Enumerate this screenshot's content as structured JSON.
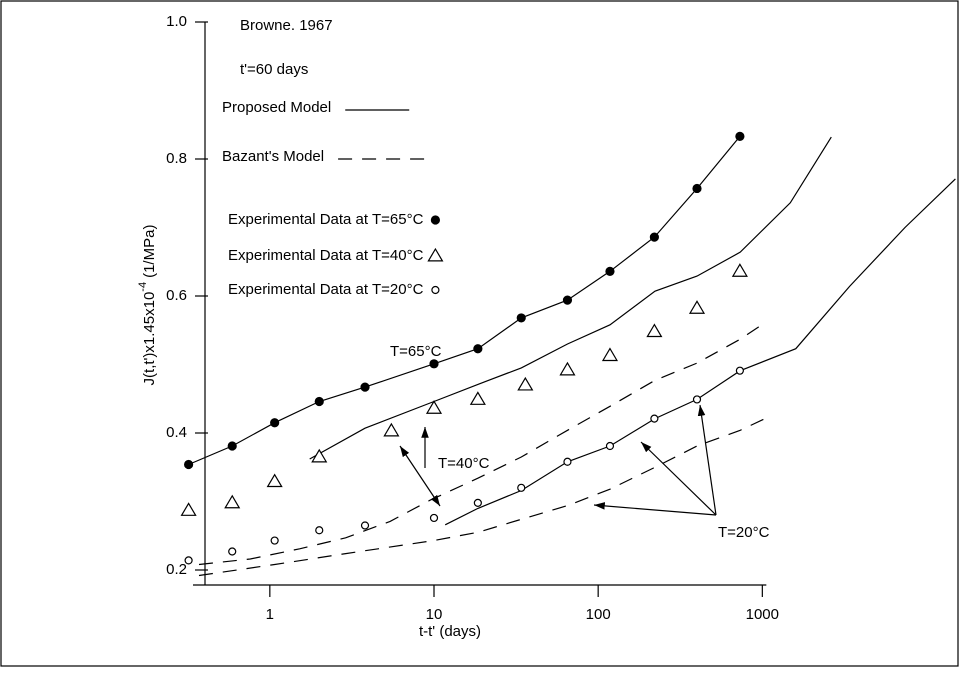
{
  "chart_data": {
    "type": "scatter",
    "source": "Browne. 1967",
    "subtitle": "t'=60 days",
    "x_label": "t-t' (days)",
    "y_label": {
      "text": "J(t,t')x1.45x10",
      "superscript": "-4",
      "unit": "(1/MPa)"
    },
    "xscale": "log",
    "xlim": [
      0.3,
      16000
    ],
    "xticks": [
      1,
      10,
      100,
      1000
    ],
    "ylim": [
      0.2,
      1.0
    ],
    "yticks": [
      0.2,
      0.4,
      0.6,
      0.8,
      {
        "value": 1.0,
        "label": "1.0"
      }
    ],
    "series": [
      {
        "name": "Experimental Data at T=65°C",
        "marker": "filled-circle",
        "color": "#000000",
        "x": [
          0.32,
          0.59,
          1.07,
          2.0,
          3.8,
          10,
          18.5,
          34,
          65,
          118,
          220,
          400,
          730
        ],
        "values": [
          0.354,
          0.381,
          0.415,
          0.446,
          0.467,
          0.501,
          0.523,
          0.568,
          0.594,
          0.636,
          0.686,
          0.757,
          0.833
        ]
      },
      {
        "name": "Experimental Data at T=40°C",
        "marker": "triangle",
        "color": "#000000",
        "x": [
          0.32,
          0.59,
          1.07,
          2.0,
          5.5,
          10,
          18.5,
          36,
          65,
          118,
          220,
          400,
          730
        ],
        "values": [
          0.287,
          0.298,
          0.329,
          0.365,
          0.403,
          0.436,
          0.449,
          0.47,
          0.492,
          0.513,
          0.548,
          0.582,
          0.636
        ]
      },
      {
        "name": "Experimental Data at T=20°C",
        "marker": "open-circle",
        "color": "#000000",
        "x": [
          0.32,
          0.59,
          1.07,
          2.0,
          3.8,
          10,
          18.5,
          34,
          65,
          118,
          220,
          400,
          730
        ],
        "values": [
          0.214,
          0.227,
          0.243,
          0.258,
          0.265,
          0.276,
          0.298,
          0.32,
          0.358,
          0.381,
          0.421,
          0.449,
          0.491
        ]
      }
    ],
    "models": [
      {
        "name": "Proposed Model",
        "style": "solid",
        "color": "#000000",
        "curves": [
          {
            "x": [
              0.32,
              0.59,
              1.07,
              2.0,
              3.8,
              10,
              18.5,
              34,
              65,
              118,
              220,
              400,
              730
            ],
            "values": [
              0.354,
              0.381,
              0.415,
              0.446,
              0.467,
              0.501,
              0.523,
              0.568,
              0.594,
              0.636,
              0.686,
              0.757,
              0.833
            ]
          },
          {
            "x": [
              1.75,
              3.8,
              10,
              18.5,
              34,
              65,
              118,
              222,
              400,
              733,
              1480,
              2630
            ],
            "values": [
              0.362,
              0.407,
              0.446,
              0.471,
              0.495,
              0.53,
              0.558,
              0.607,
              0.629,
              0.664,
              0.736,
              0.832
            ]
          },
          {
            "x": [
              11.7,
              18.5,
              34,
              65,
              118,
              222,
              400,
              733,
              1600,
              3400,
              7400,
              15000
            ],
            "values": [
              0.266,
              0.29,
              0.316,
              0.358,
              0.381,
              0.421,
              0.449,
              0.491,
              0.523,
              0.614,
              0.7,
              0.771
            ]
          }
        ]
      },
      {
        "name": "Bazant's Model",
        "style": "dashed",
        "color": "#000000",
        "curves": [
          {
            "x": [
              0.37,
              0.76,
              1.52,
              2.9,
              5.4,
              9.5,
              18.5,
              34,
              65,
              118,
              222,
              400,
              733,
              1040
            ],
            "values": [
              0.208,
              0.216,
              0.231,
              0.247,
              0.271,
              0.302,
              0.334,
              0.365,
              0.404,
              0.439,
              0.477,
              0.502,
              0.537,
              0.561
            ]
          },
          {
            "x": [
              0.37,
              1.07,
              2.9,
              10,
              18.5,
              34,
              65,
              118,
              222,
              400,
              733,
              1040
            ],
            "values": [
              0.192,
              0.208,
              0.224,
              0.243,
              0.255,
              0.274,
              0.294,
              0.318,
              0.35,
              0.381,
              0.404,
              0.421
            ]
          }
        ]
      }
    ],
    "annotations": [
      {
        "text": "T=65°C"
      },
      {
        "text": "T=40°C"
      },
      {
        "text": "T=20°C"
      }
    ]
  }
}
